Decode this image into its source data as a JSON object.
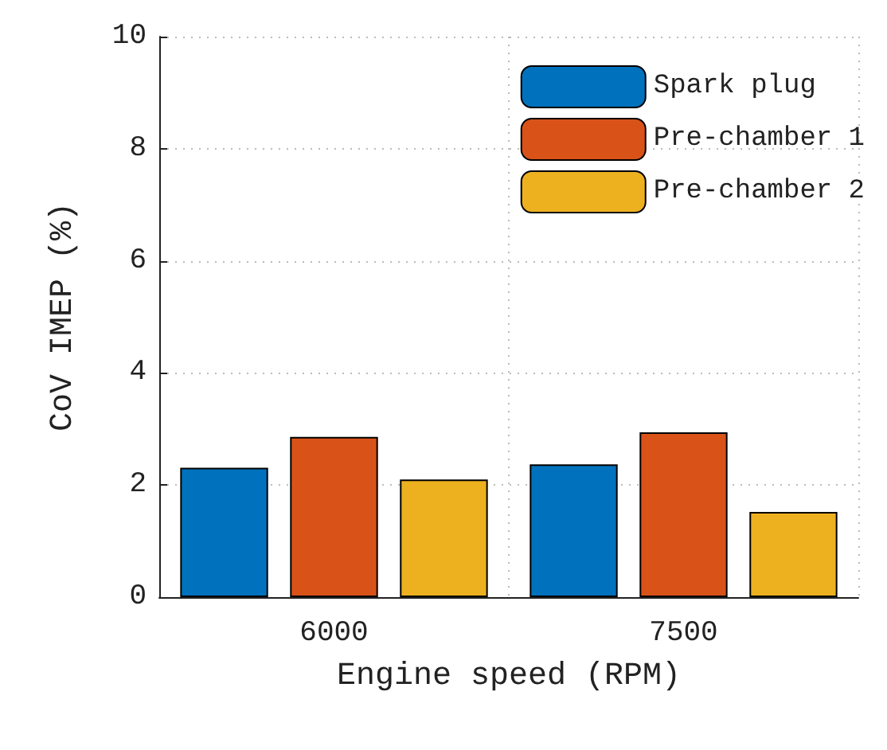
{
  "chart_data": {
    "type": "bar",
    "xlabel": "Engine speed (RPM)",
    "ylabel": "CoV IMEP (%)",
    "categories": [
      "6000",
      "7500"
    ],
    "series": [
      {
        "name": "Spark plug",
        "color": "#0072bd",
        "values": [
          2.31,
          2.37
        ]
      },
      {
        "name": "Pre-chamber 1",
        "color": "#d95319",
        "values": [
          2.86,
          2.94
        ]
      },
      {
        "name": "Pre-chamber 2",
        "color": "#edb120",
        "values": [
          2.1,
          1.52
        ]
      }
    ],
    "ylim": [
      0,
      10
    ],
    "yticks": [
      0,
      2,
      4,
      6,
      8,
      10
    ],
    "grid": true,
    "legend": "top right"
  }
}
